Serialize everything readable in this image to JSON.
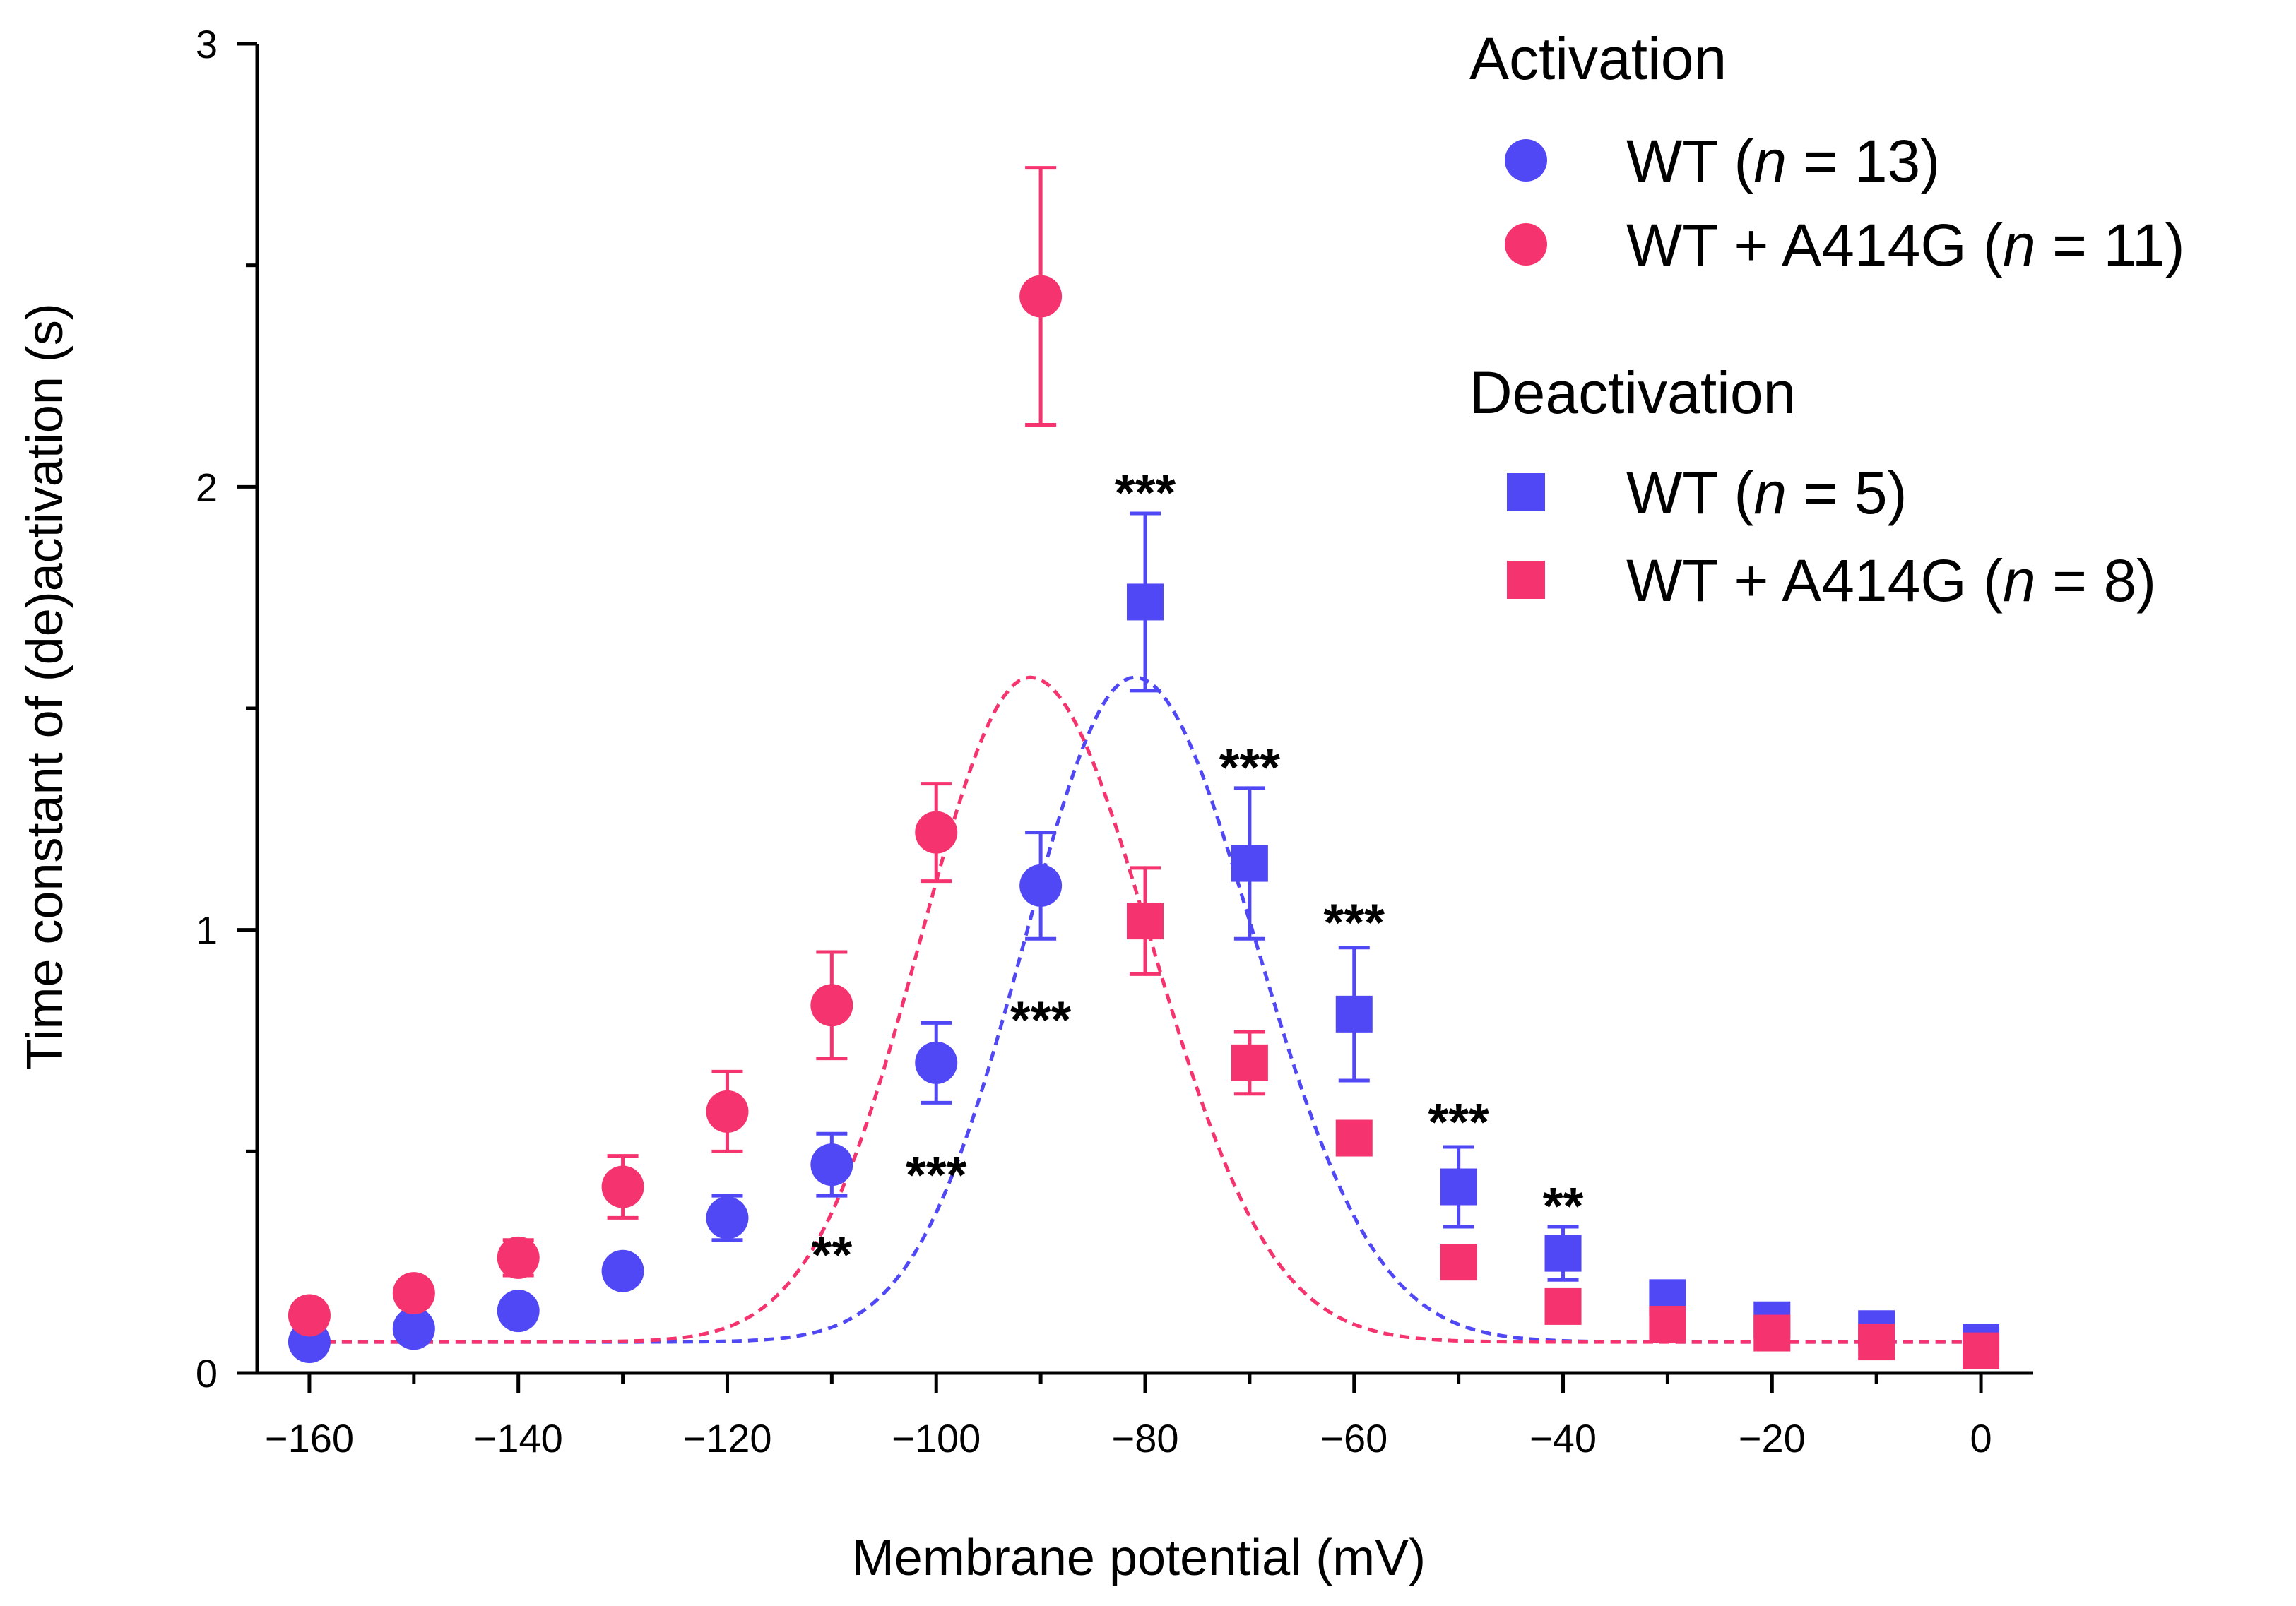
{
  "chart_data": {
    "type": "scatter",
    "xlabel": "Membrane potential (mV)",
    "ylabel": "Time constant of (de)activation (s)",
    "xlim": [
      -165,
      5
    ],
    "ylim": [
      0,
      3
    ],
    "x_ticks": [
      -160,
      -140,
      -120,
      -100,
      -80,
      -60,
      -40,
      -20,
      0
    ],
    "x_tick_labels": [
      "−160",
      "−140",
      "−120",
      "−100",
      "−80",
      "−60",
      "−40",
      "−20",
      "0"
    ],
    "y_ticks": [
      0,
      1,
      2,
      3
    ],
    "y_tick_labels": [
      "0",
      "1",
      "2",
      "3"
    ],
    "colors": {
      "wt": "#5148f5",
      "mut": "#f5336e"
    },
    "legend": {
      "activation_heading": "Activation",
      "deactivation_heading": "Deactivation",
      "entries": [
        {
          "prefix": "WT (",
          "n_italic": "n",
          "suffix": " = 13)",
          "marker": "circle",
          "color": "#5148f5"
        },
        {
          "prefix": "WT + A414G (",
          "n_italic": "n",
          "suffix": " = 11)",
          "marker": "circle",
          "color": "#f5336e"
        },
        {
          "prefix": "WT (",
          "n_italic": "n",
          "suffix": " = 5)",
          "marker": "square",
          "color": "#5148f5"
        },
        {
          "prefix": "WT + A414G (",
          "n_italic": "n",
          "suffix": " = 8)",
          "marker": "square",
          "color": "#f5336e"
        }
      ]
    },
    "series": [
      {
        "name": "Activation WT (n = 13)",
        "marker": "circle",
        "color": "#5148f5",
        "x": [
          -160,
          -150,
          -140,
          -130,
          -120,
          -110,
          -100,
          -90
        ],
        "y": [
          0.07,
          0.1,
          0.14,
          0.23,
          0.35,
          0.47,
          0.7,
          1.1
        ],
        "err": [
          0.02,
          0.02,
          0.02,
          0.03,
          0.05,
          0.07,
          0.09,
          0.12
        ]
      },
      {
        "name": "Activation WT + A414G (n = 11)",
        "marker": "circle",
        "color": "#f5336e",
        "x": [
          -160,
          -150,
          -140,
          -130,
          -120,
          -110,
          -100,
          -90
        ],
        "y": [
          0.13,
          0.18,
          0.26,
          0.42,
          0.59,
          0.83,
          1.22,
          2.43
        ],
        "err": [
          0.02,
          0.03,
          0.04,
          0.07,
          0.09,
          0.12,
          0.11,
          0.29
        ]
      },
      {
        "name": "Deactivation WT (n = 5)",
        "marker": "square",
        "color": "#5148f5",
        "x": [
          -80,
          -70,
          -60,
          -50,
          -40,
          -30,
          -20,
          -10,
          0
        ],
        "y": [
          1.74,
          1.15,
          0.81,
          0.42,
          0.27,
          0.17,
          0.12,
          0.1,
          0.07
        ],
        "err": [
          0.2,
          0.17,
          0.15,
          0.09,
          0.06,
          0.02,
          0.01,
          0.01,
          0.01
        ]
      },
      {
        "name": "Deactivation WT + A414G (n = 8)",
        "marker": "square",
        "color": "#f5336e",
        "x": [
          -80,
          -70,
          -60,
          -50,
          -40,
          -30,
          -20,
          -10,
          0
        ],
        "y": [
          1.02,
          0.7,
          0.53,
          0.25,
          0.15,
          0.11,
          0.09,
          0.07,
          0.05
        ],
        "err": [
          0.12,
          0.07,
          0.02,
          0.01,
          0.01,
          0.01,
          0.01,
          0.01,
          0.01
        ]
      }
    ],
    "fits": [
      {
        "name": "WT fit",
        "color": "#5148f5",
        "peak_x": -81,
        "peak_y": 1.57,
        "baseline": 0.07,
        "width_left": 10.5,
        "width_right": 11.5
      },
      {
        "name": "WT + A414G fit",
        "color": "#f5336e",
        "peak_x": -91,
        "peak_y": 1.57,
        "baseline": 0.07,
        "width_left": 10.5,
        "width_right": 11.5
      }
    ],
    "significance": [
      {
        "x": -110,
        "y": 0.29,
        "text": "**"
      },
      {
        "x": -100,
        "y": 0.47,
        "text": "***"
      },
      {
        "x": -90,
        "y": 0.82,
        "text": "***"
      },
      {
        "x": -80,
        "y": 2.01,
        "text": "***"
      },
      {
        "x": -70,
        "y": 1.39,
        "text": "***"
      },
      {
        "x": -60,
        "y": 1.04,
        "text": "***"
      },
      {
        "x": -50,
        "y": 0.59,
        "text": "***"
      },
      {
        "x": -40,
        "y": 0.4,
        "text": "**"
      }
    ]
  }
}
